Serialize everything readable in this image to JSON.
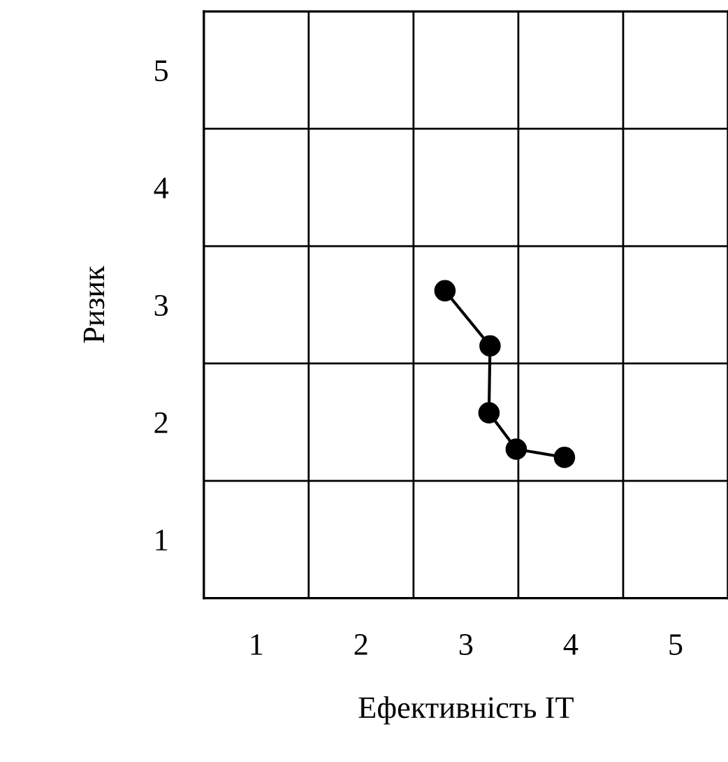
{
  "chart_data": {
    "type": "line",
    "xlabel": "Ефективність ІТ",
    "ylabel": "Ризик",
    "x": [
      2.8,
      3.23,
      3.22,
      3.48,
      3.94
    ],
    "values": [
      3.12,
      2.65,
      2.08,
      1.77,
      1.7
    ],
    "color": "#000000",
    "marker": "circle",
    "line_style": "solid",
    "xlim": [
      0.5,
      5.5
    ],
    "ylim": [
      0.5,
      5.5
    ],
    "xticks": [
      1,
      2,
      3,
      4,
      5
    ],
    "yticks": [
      1,
      2,
      3,
      4,
      5
    ],
    "grid": true
  }
}
